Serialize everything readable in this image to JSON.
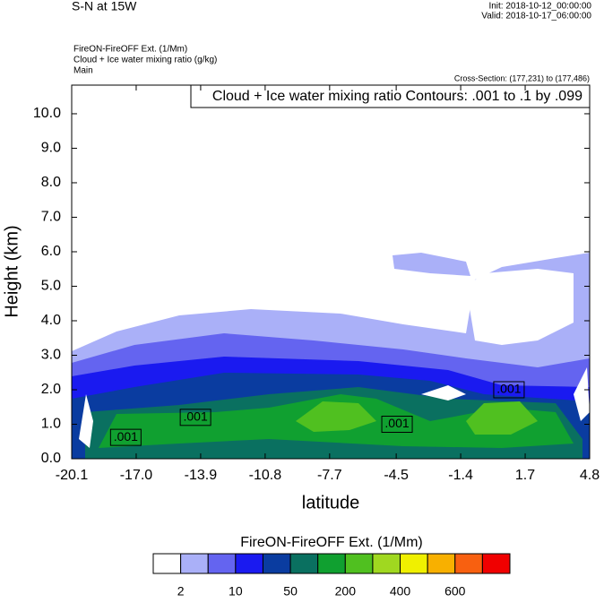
{
  "chart_data": {
    "type": "contour-cross-section",
    "title": "S-N at 15W",
    "init": "Init: 2018-10-12_00:00:00",
    "valid": "Valid: 2018-10-17_06:00:00",
    "field_title": "FireON-FireOFF Ext.   (1/Mm)",
    "contour_field": "Cloud + Ice water mixing ratio   (g/kg)",
    "domain": "Main",
    "cross_section": "Cross-Section: (177,231) to (177,486)",
    "contour_info": "Cloud + Ice water mixing ratio Contours: .001 to .1 by .099",
    "xlabel": "latitude",
    "ylabel": "Height (km)",
    "xlim": [
      -20.1,
      4.8
    ],
    "ylim": [
      0,
      10.83
    ],
    "xticks": [
      -20.1,
      {
        "value": -17.0,
        "label": "-17.0"
      },
      -13.9,
      -10.8,
      -7.7,
      -4.5,
      -1.4,
      1.7,
      4.8
    ],
    "yticks": [
      {
        "value": 0,
        "label": "0.0"
      },
      {
        "value": 1,
        "label": "1.0"
      },
      {
        "value": 2,
        "label": "2.0"
      },
      {
        "value": 3,
        "label": "3.0"
      },
      {
        "value": 4,
        "label": "4.0"
      },
      {
        "value": 5,
        "label": "5.0"
      },
      {
        "value": 6,
        "label": "6.0"
      },
      {
        "value": 7,
        "label": "7.0"
      },
      {
        "value": 8,
        "label": "8.0"
      },
      {
        "value": 9,
        "label": "9.0"
      },
      {
        "value": 10,
        "label": "10.0"
      }
    ],
    "contour_labels": [
      {
        "text": ".001",
        "x": -17.5,
        "y": 0.62
      },
      {
        "text": ".001",
        "x": -14.15,
        "y": 1.2
      },
      {
        "text": ".001",
        "x": -4.46,
        "y": 1.0
      },
      {
        "text": ".001",
        "x": 0.92,
        "y": 2.0
      }
    ],
    "colorbar": {
      "title": "FireON-FireOFF Ext.  (1/Mm)",
      "colors": [
        "#ffffff",
        "#aab0f8",
        "#6464f0",
        "#1a1af0",
        "#0a3ca0",
        "#0a7060",
        "#10a030",
        "#50c020",
        "#a0d820",
        "#f0f000",
        "#f8b000",
        "#f86010",
        "#f00000"
      ],
      "levels": [
        2,
        null,
        10,
        null,
        50,
        null,
        200,
        null,
        400,
        null,
        600,
        null
      ]
    }
  }
}
